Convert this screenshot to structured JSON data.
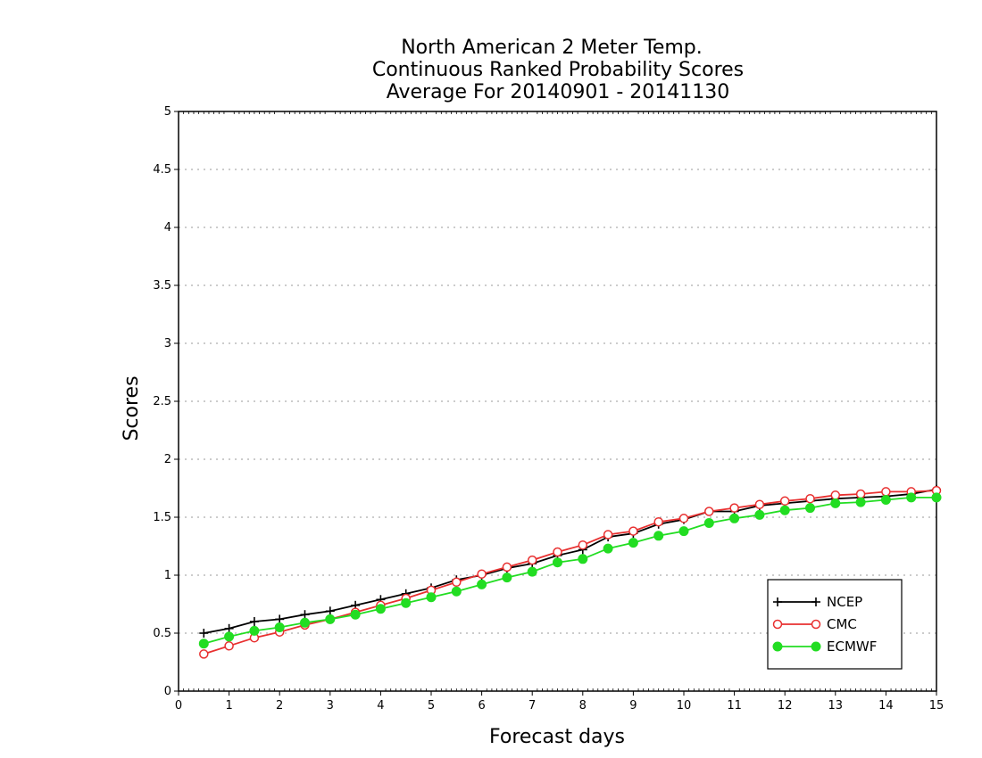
{
  "chart_data": {
    "type": "line",
    "title_lines": [
      "North American 2 Meter Temp.",
      "Continuous Ranked Probability Scores",
      "Average For 20140901 - 20141130"
    ],
    "xlabel": "Forecast days",
    "ylabel": "Scores",
    "xlim": [
      0,
      15
    ],
    "ylim": [
      0,
      5
    ],
    "x_ticks": [
      0,
      1,
      2,
      3,
      4,
      5,
      6,
      7,
      8,
      9,
      10,
      11,
      12,
      13,
      14,
      15
    ],
    "y_ticks": [
      0,
      0.5,
      1,
      1.5,
      2,
      2.5,
      3,
      3.5,
      4,
      4.5,
      5
    ],
    "x_tick_labels": [
      "0",
      "1",
      "2",
      "3",
      "4",
      "5",
      "6",
      "7",
      "8",
      "9",
      "10",
      "11",
      "12",
      "13",
      "14",
      "15"
    ],
    "y_tick_labels": [
      "0",
      "0.5",
      "1",
      "1.5",
      "2",
      "2.5",
      "3",
      "3.5",
      "4",
      "4.5",
      "5"
    ],
    "grid": "horizontal dotted",
    "legend_position": "bottom-right",
    "x": [
      0.5,
      1.0,
      1.5,
      2.0,
      2.5,
      3.0,
      3.5,
      4.0,
      4.5,
      5.0,
      5.5,
      6.0,
      6.5,
      7.0,
      7.5,
      8.0,
      8.5,
      9.0,
      9.5,
      10.0,
      10.5,
      11.0,
      11.5,
      12.0,
      12.5,
      13.0,
      13.5,
      14.0,
      14.5,
      15.0
    ],
    "series": [
      {
        "name": "NCEP",
        "color": "#000000",
        "marker": "plus",
        "values": [
          0.5,
          0.54,
          0.6,
          0.62,
          0.66,
          0.69,
          0.74,
          0.79,
          0.84,
          0.89,
          0.96,
          1.0,
          1.06,
          1.1,
          1.17,
          1.22,
          1.33,
          1.36,
          1.44,
          1.48,
          1.55,
          1.55,
          1.6,
          1.62,
          1.64,
          1.66,
          1.67,
          1.68,
          1.7,
          1.74
        ]
      },
      {
        "name": "CMC",
        "color": "#e83030",
        "marker": "open-circle",
        "values": [
          0.32,
          0.39,
          0.46,
          0.51,
          0.57,
          0.62,
          0.68,
          0.74,
          0.8,
          0.87,
          0.94,
          1.01,
          1.07,
          1.13,
          1.2,
          1.26,
          1.35,
          1.38,
          1.46,
          1.49,
          1.55,
          1.58,
          1.61,
          1.64,
          1.66,
          1.69,
          1.7,
          1.72,
          1.72,
          1.73
        ]
      },
      {
        "name": "ECMWF",
        "color": "#22dd22",
        "marker": "filled-circle",
        "values": [
          0.41,
          0.47,
          0.52,
          0.55,
          0.59,
          0.62,
          0.66,
          0.71,
          0.76,
          0.81,
          0.86,
          0.92,
          0.98,
          1.03,
          1.11,
          1.14,
          1.23,
          1.28,
          1.34,
          1.38,
          1.45,
          1.49,
          1.52,
          1.56,
          1.58,
          1.62,
          1.63,
          1.65,
          1.67,
          1.67
        ]
      }
    ]
  }
}
